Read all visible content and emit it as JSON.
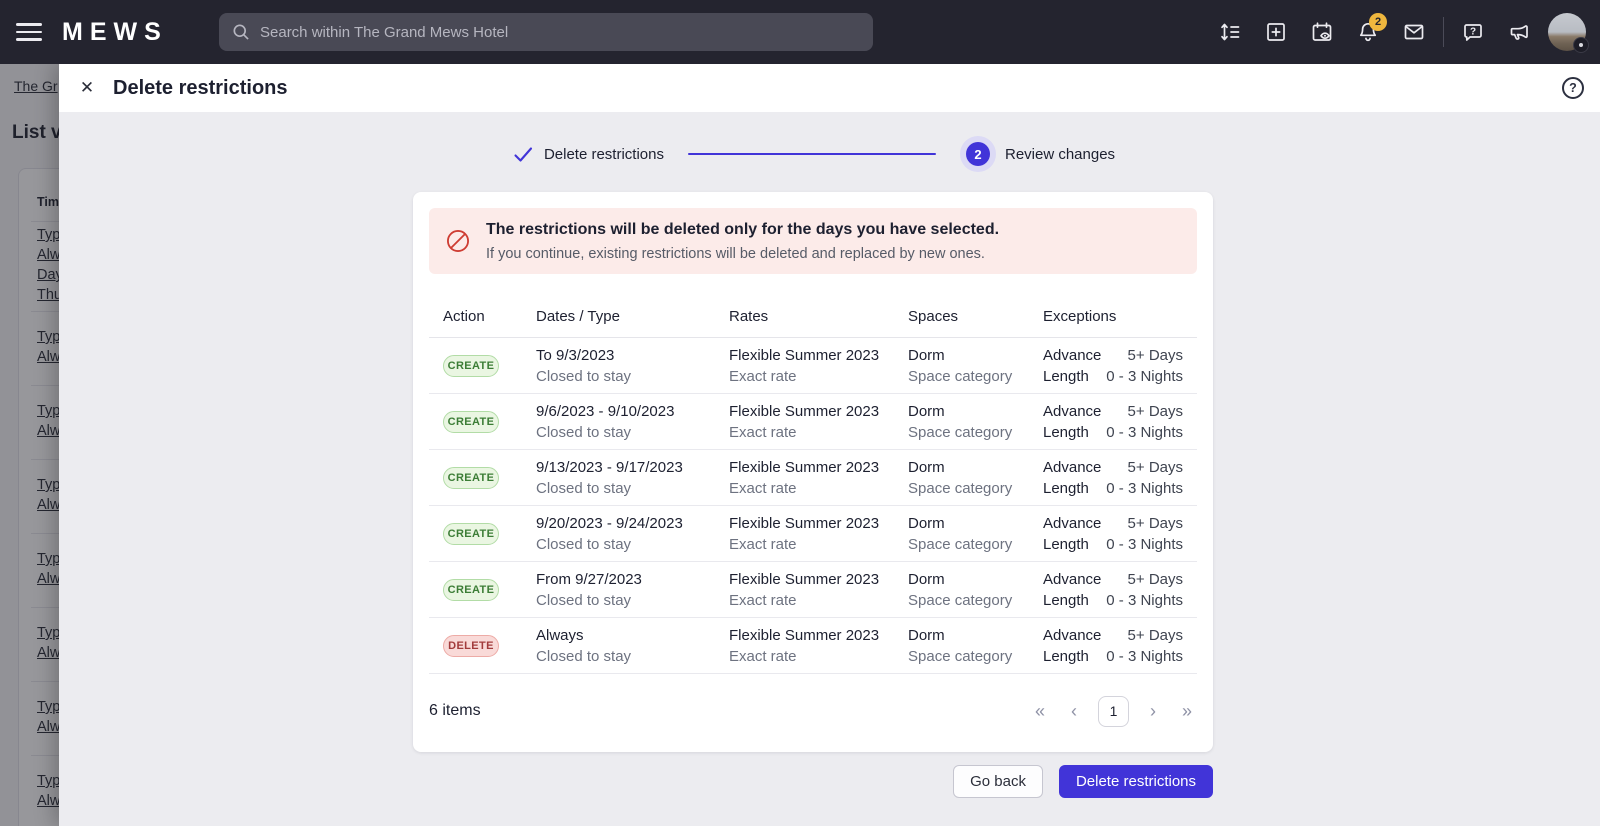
{
  "colors": {
    "primary": "#4134d8",
    "primary_halo": "#dcdaf5",
    "navbar_bg": "#24242f",
    "badge_yellow": "#efb73e",
    "warning_bg": "#fcebe9",
    "warning_icon": "#ce3d33",
    "create_bg": "#eaf6e2",
    "create_border": "#b2dca6",
    "create_text": "#3c7d36",
    "delete_bg": "#f9dad8",
    "delete_border": "#edaba6",
    "delete_text": "#a23c3c"
  },
  "navbar": {
    "logo": "MEWS",
    "search_placeholder": "Search within The Grand Mews Hotel",
    "notification_count": "2"
  },
  "background": {
    "breadcrumb": "The Gr",
    "page_title": "List vie",
    "panel_header": "Tim",
    "groups": [
      [
        "Typ",
        "Alw",
        "Day",
        "Thu"
      ],
      [
        "Typ",
        "Alw"
      ],
      [
        "Typ",
        "Alw"
      ],
      [
        "Typ",
        "Alw"
      ],
      [
        "Typ",
        "Alw"
      ],
      [
        "Typ",
        "Alw"
      ],
      [
        "Typ",
        "Alw"
      ],
      [
        "Typ",
        "Alw"
      ]
    ]
  },
  "modal": {
    "title": "Delete restrictions",
    "close_glyph": "✕",
    "help_glyph": "?",
    "steps": {
      "step1_label": "Delete restrictions",
      "step2_number": "2",
      "step2_label": "Review changes"
    },
    "warning": {
      "title": "The restrictions will be deleted only for the days you have selected.",
      "subtitle": "If you continue, existing restrictions will be deleted and replaced by new ones."
    },
    "table": {
      "columns": [
        "Action",
        "Dates / Type",
        "Rates",
        "Spaces",
        "Exceptions"
      ],
      "rows": [
        {
          "action": "CREATE",
          "action_type": "create",
          "dates": "To 9/3/2023",
          "restriction": "Closed to stay",
          "rate": "Flexible Summer 2023",
          "rate_detail": "Exact rate",
          "space": "Dorm",
          "space_detail": "Space category",
          "exceptions": [
            {
              "label": "Advance",
              "value": "5+ Days"
            },
            {
              "label": "Length",
              "value": "0 - 3 Nights"
            }
          ]
        },
        {
          "action": "CREATE",
          "action_type": "create",
          "dates": "9/6/2023 - 9/10/2023",
          "restriction": "Closed to stay",
          "rate": "Flexible Summer 2023",
          "rate_detail": "Exact rate",
          "space": "Dorm",
          "space_detail": "Space category",
          "exceptions": [
            {
              "label": "Advance",
              "value": "5+ Days"
            },
            {
              "label": "Length",
              "value": "0 - 3 Nights"
            }
          ]
        },
        {
          "action": "CREATE",
          "action_type": "create",
          "dates": "9/13/2023 - 9/17/2023",
          "restriction": "Closed to stay",
          "rate": "Flexible Summer 2023",
          "rate_detail": "Exact rate",
          "space": "Dorm",
          "space_detail": "Space category",
          "exceptions": [
            {
              "label": "Advance",
              "value": "5+ Days"
            },
            {
              "label": "Length",
              "value": "0 - 3 Nights"
            }
          ]
        },
        {
          "action": "CREATE",
          "action_type": "create",
          "dates": "9/20/2023 - 9/24/2023",
          "restriction": "Closed to stay",
          "rate": "Flexible Summer 2023",
          "rate_detail": "Exact rate",
          "space": "Dorm",
          "space_detail": "Space category",
          "exceptions": [
            {
              "label": "Advance",
              "value": "5+ Days"
            },
            {
              "label": "Length",
              "value": "0 - 3 Nights"
            }
          ]
        },
        {
          "action": "CREATE",
          "action_type": "create",
          "dates": "From 9/27/2023",
          "restriction": "Closed to stay",
          "rate": "Flexible Summer 2023",
          "rate_detail": "Exact rate",
          "space": "Dorm",
          "space_detail": "Space category",
          "exceptions": [
            {
              "label": "Advance",
              "value": "5+ Days"
            },
            {
              "label": "Length",
              "value": "0 - 3 Nights"
            }
          ]
        },
        {
          "action": "DELETE",
          "action_type": "delete",
          "dates": "Always",
          "restriction": "Closed to stay",
          "rate": "Flexible Summer 2023",
          "rate_detail": "Exact rate",
          "space": "Dorm",
          "space_detail": "Space category",
          "exceptions": [
            {
              "label": "Advance",
              "value": "5+ Days"
            },
            {
              "label": "Length",
              "value": "0 - 3 Nights"
            }
          ]
        }
      ]
    },
    "footer": {
      "items_count": "6 items",
      "pagination": {
        "first": "«",
        "prev": "‹",
        "page": "1",
        "next": "›",
        "last": "»"
      },
      "go_back_label": "Go back",
      "submit_label": "Delete restrictions"
    }
  }
}
